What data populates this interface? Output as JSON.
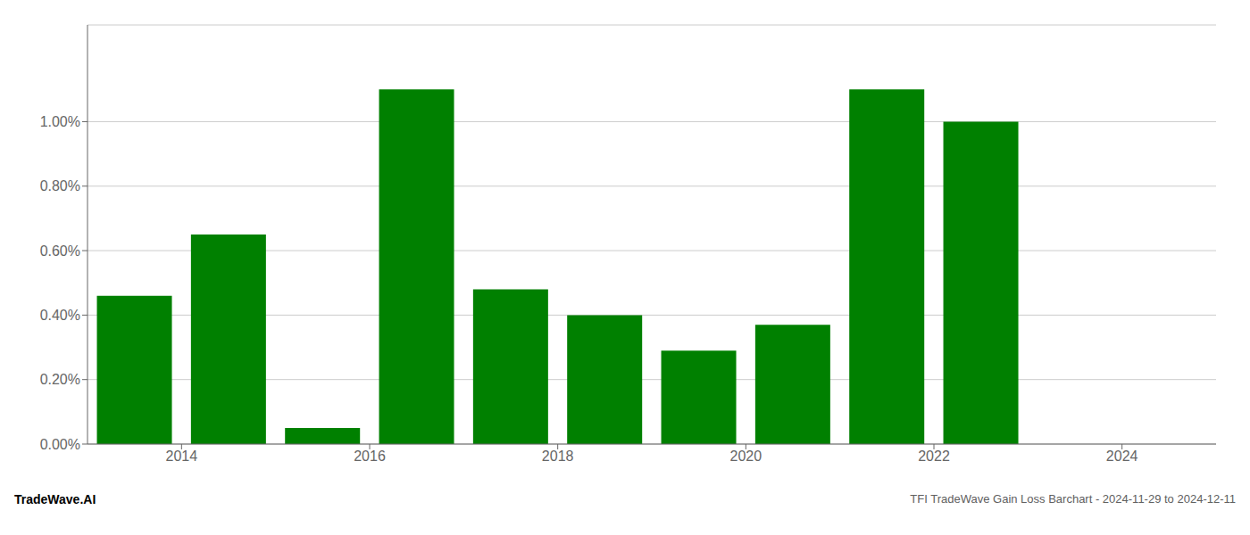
{
  "chart_data": {
    "type": "bar",
    "x": [
      2013,
      2014,
      2015,
      2016,
      2017,
      2018,
      2019,
      2020,
      2021,
      2022
    ],
    "values": [
      0.0046,
      0.0065,
      0.0005,
      0.011,
      0.0048,
      0.004,
      0.0029,
      0.0037,
      0.011,
      0.01
    ],
    "color": "#008000",
    "xlim": [
      2012.5,
      2024.5
    ],
    "xticks": [
      {
        "value": 2013.5,
        "label": "2014"
      },
      {
        "value": 2015.5,
        "label": "2016"
      },
      {
        "value": 2017.5,
        "label": "2018"
      },
      {
        "value": 2019.5,
        "label": "2020"
      },
      {
        "value": 2021.5,
        "label": "2022"
      },
      {
        "value": 2023.5,
        "label": "2024"
      }
    ],
    "ylim": [
      0,
      0.013
    ],
    "yticks": [
      {
        "value": 0.0,
        "label": "0.00%"
      },
      {
        "value": 0.002,
        "label": "0.20%"
      },
      {
        "value": 0.004,
        "label": "0.40%"
      },
      {
        "value": 0.006,
        "label": "0.60%"
      },
      {
        "value": 0.008,
        "label": "0.80%"
      },
      {
        "value": 0.01,
        "label": "1.00%"
      }
    ],
    "grid": true,
    "annotations": [
      "TradeWave.AI",
      "TFI TradeWave Gain Loss Barchart - 2024-11-29 to 2024-12-11"
    ]
  }
}
